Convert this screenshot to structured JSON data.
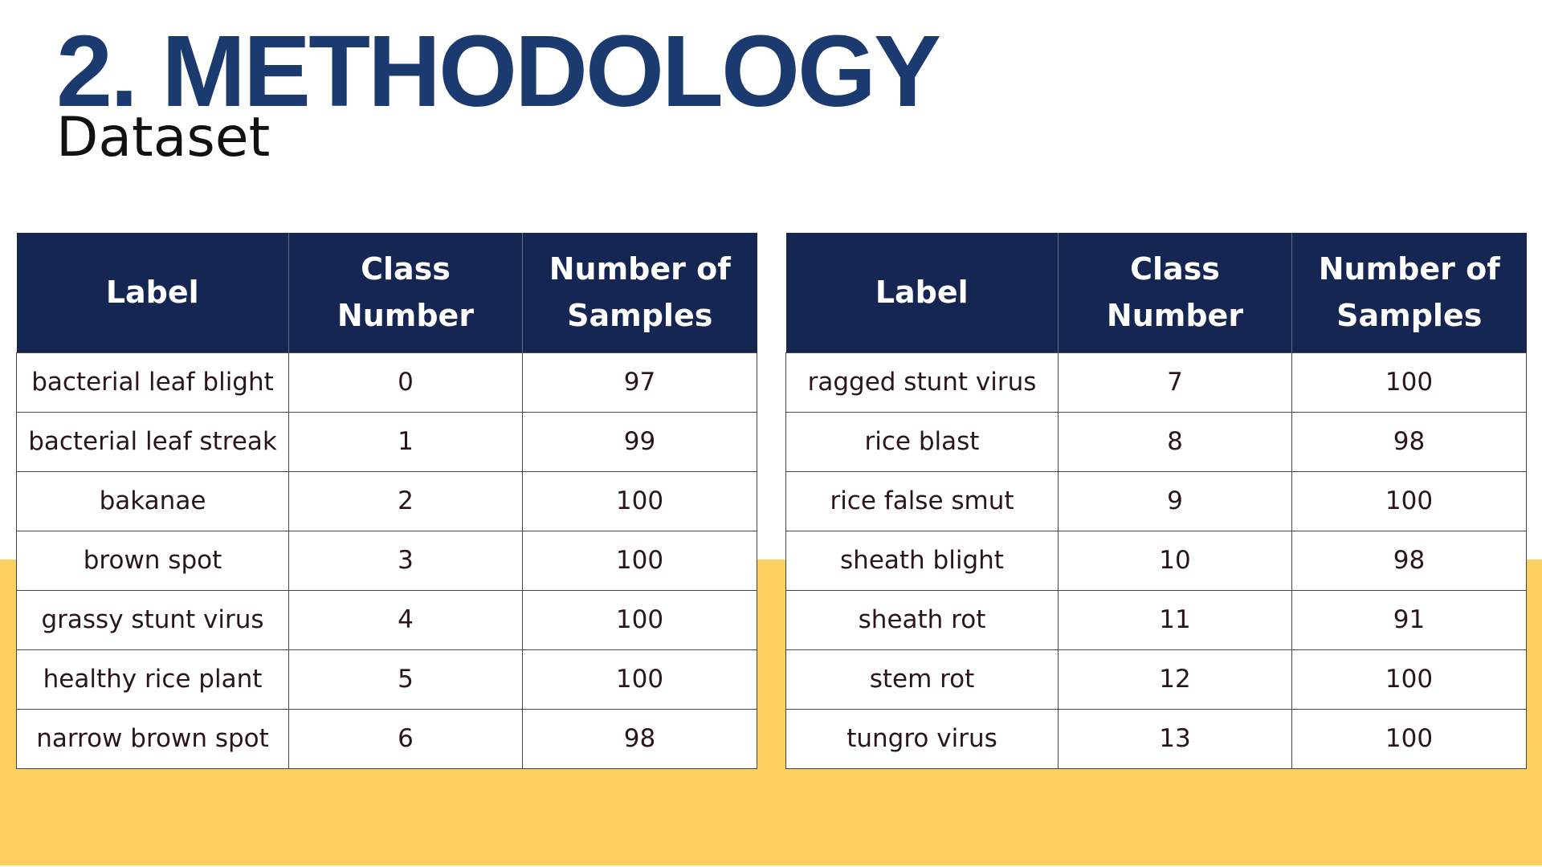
{
  "slide": {
    "title": "2. METHODOLOGY",
    "subtitle": "Dataset"
  },
  "colors": {
    "title": "#1B3A70",
    "header_bg": "#152653",
    "accent_band": "#FCCF61"
  },
  "tables": [
    {
      "headers": [
        "Label",
        "Class Number",
        "Number of Samples"
      ],
      "rows": [
        [
          "bacterial leaf blight",
          "0",
          "97"
        ],
        [
          "bacterial leaf streak",
          "1",
          "99"
        ],
        [
          "bakanae",
          "2",
          "100"
        ],
        [
          "brown spot",
          "3",
          "100"
        ],
        [
          "grassy stunt virus",
          "4",
          "100"
        ],
        [
          "healthy rice plant",
          "5",
          "100"
        ],
        [
          "narrow brown spot",
          "6",
          "98"
        ]
      ]
    },
    {
      "headers": [
        "Label",
        "Class Number",
        "Number of Samples"
      ],
      "rows": [
        [
          "ragged stunt virus",
          "7",
          "100"
        ],
        [
          "rice blast",
          "8",
          "98"
        ],
        [
          "rice false smut",
          "9",
          "100"
        ],
        [
          "sheath blight",
          "10",
          "98"
        ],
        [
          "sheath rot",
          "11",
          "91"
        ],
        [
          "stem rot",
          "12",
          "100"
        ],
        [
          "tungro virus",
          "13",
          "100"
        ]
      ]
    }
  ]
}
